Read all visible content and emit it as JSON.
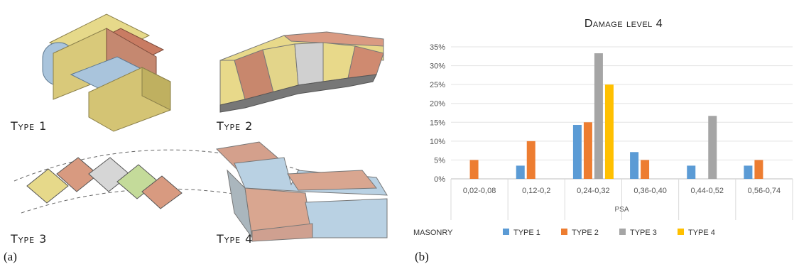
{
  "left_panel": {
    "type_labels": [
      "Type 1",
      "Type 2",
      "Type 3",
      "Type 4"
    ],
    "panel_label": "(a)"
  },
  "right_panel": {
    "panel_label": "(b)"
  },
  "colors": {
    "type1": "#5b9bd5",
    "type2": "#ed7d31",
    "type3": "#a5a5a5",
    "type4": "#ffc000"
  },
  "chart_data": {
    "type": "bar",
    "title": "Damage level 4",
    "xlabel": "PSA",
    "ylabel": "",
    "ylim": [
      0,
      35
    ],
    "yticks": [
      "0%",
      "5%",
      "10%",
      "15%",
      "20%",
      "25%",
      "30%",
      "35%"
    ],
    "legend_title": "MASONRY",
    "legend_position": "bottom",
    "grid": true,
    "categories": [
      "0,02-0,08",
      "0,12-0,2",
      "0,24-0,32",
      "0,36-0,40",
      "0,44-0,52",
      "0,56-0,74"
    ],
    "series": [
      {
        "name": "TYPE 1",
        "values": [
          0,
          3.5,
          14.3,
          7.1,
          3.5,
          3.5
        ]
      },
      {
        "name": "TYPE 2",
        "values": [
          5,
          10,
          15,
          5,
          0,
          5
        ]
      },
      {
        "name": "TYPE 3",
        "values": [
          0,
          0,
          33.3,
          0,
          16.7,
          0
        ]
      },
      {
        "name": "TYPE 4",
        "values": [
          0,
          0,
          25,
          0,
          0,
          0
        ]
      }
    ]
  }
}
